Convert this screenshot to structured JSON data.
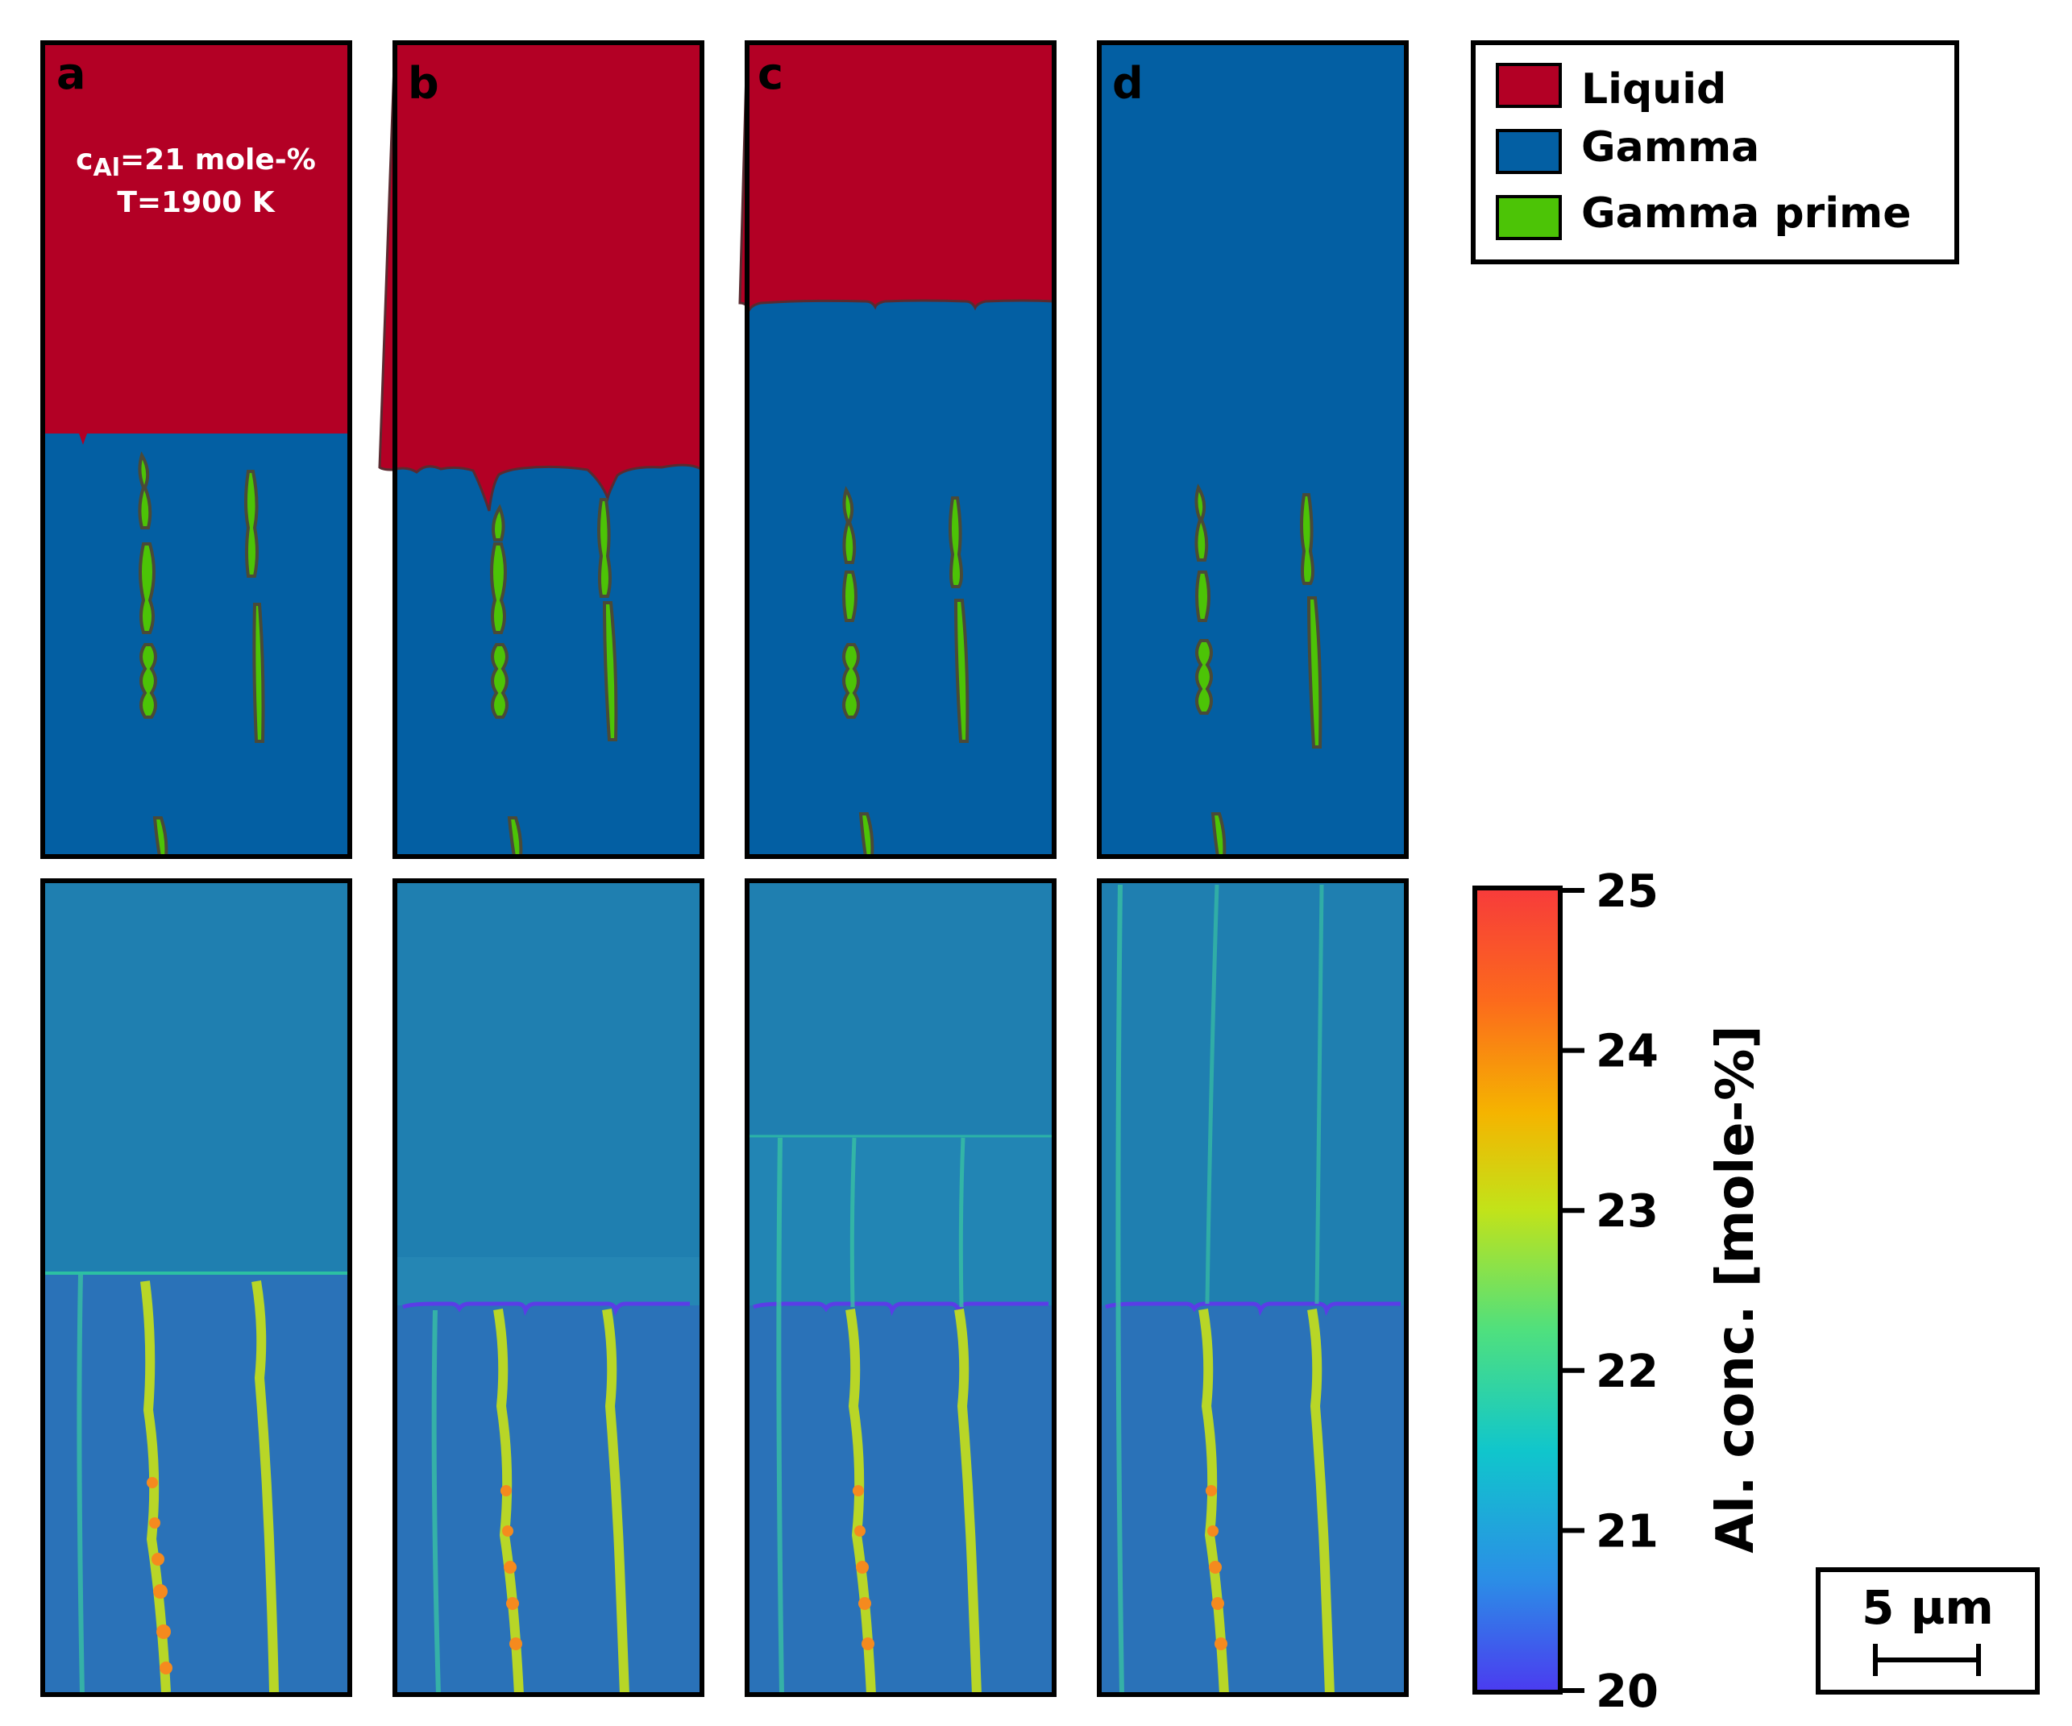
{
  "figure": {
    "panels": [
      {
        "label": "a",
        "phase_field": {
          "liquid_fraction_percent": 48
        }
      },
      {
        "label": "b",
        "phase_field": {
          "liquid_fraction_percent": 52
        }
      },
      {
        "label": "c",
        "phase_field": {
          "liquid_fraction_percent": 32
        }
      },
      {
        "label": "d",
        "phase_field": {
          "liquid_fraction_percent": 0
        }
      }
    ],
    "annotation": {
      "composition_prefix": "c",
      "composition_subscript": "Al",
      "composition_value": "=21 mole-%",
      "temperature": "T=1900 K"
    },
    "legend": {
      "items": [
        {
          "label": "Liquid",
          "color": "#b30025"
        },
        {
          "label": "Gamma",
          "color": "#035fa3"
        },
        {
          "label": "Gamma prime",
          "color": "#4cc406"
        }
      ]
    },
    "colorbar": {
      "label": "Al. conc. [mole-%]",
      "min": 20,
      "max": 25,
      "ticks": [
        "20",
        "21",
        "22",
        "23",
        "24",
        "25"
      ],
      "colormap": [
        "#4b3bf0",
        "#2b8ee6",
        "#10c6cc",
        "#4fe07e",
        "#c2e319",
        "#f5b400",
        "#fc6a1c",
        "#f73b3b"
      ]
    },
    "scalebar": {
      "label": "5 µm"
    }
  }
}
